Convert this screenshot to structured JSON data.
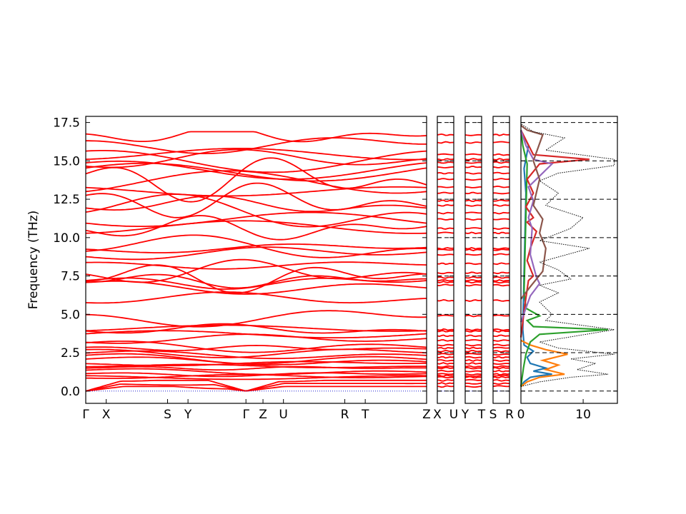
{
  "chart_data": {
    "type": "line",
    "ylabel": "Frequency (THz)",
    "ylim": [
      -0.8,
      17.9
    ],
    "yticks": [
      "0.0",
      "2.5",
      "5.0",
      "7.5",
      "10.0",
      "12.5",
      "15.0",
      "17.5"
    ],
    "ytick_values": [
      0.0,
      2.5,
      5.0,
      7.5,
      10.0,
      12.5,
      15.0,
      17.5
    ],
    "band_color": "#ff0000",
    "zero_line_color": "#0000cc",
    "panels": [
      {
        "xticks": [
          {
            "label": "Γ",
            "x": 0.0
          },
          {
            "label": "X",
            "x": 0.06
          },
          {
            "label": "S",
            "x": 0.24
          },
          {
            "label": "Y",
            "x": 0.3
          },
          {
            "label": "Γ",
            "x": 0.47
          },
          {
            "label": "Z",
            "x": 0.52
          },
          {
            "label": "U",
            "x": 0.58
          },
          {
            "label": "R",
            "x": 0.76
          },
          {
            "label": "T",
            "x": 0.82
          },
          {
            "label": "Z",
            "x": 1.0
          }
        ]
      },
      {
        "xticks": [
          {
            "label": "X",
            "x": 0.0
          },
          {
            "label": "U",
            "x": 1.0
          }
        ]
      },
      {
        "xticks": [
          {
            "label": "Y",
            "x": 0.0
          },
          {
            "label": "T",
            "x": 1.0
          }
        ]
      },
      {
        "xticks": [
          {
            "label": "S",
            "x": 0.0
          },
          {
            "label": "R",
            "x": 1.0
          }
        ]
      }
    ],
    "band_levels": [
      0.3,
      0.5,
      0.7,
      0.9,
      1.0,
      1.1,
      1.3,
      1.5,
      1.6,
      1.8,
      2.0,
      2.2,
      2.4,
      2.6,
      2.8,
      3.0,
      3.3,
      3.6,
      3.9,
      4.0,
      4.9,
      5.9,
      6.9,
      7.1,
      7.2,
      7.4,
      7.7,
      8.3,
      8.9,
      9.2,
      9.3,
      10.3,
      10.6,
      11.2,
      11.6,
      12.1,
      12.4,
      12.9,
      13.3,
      13.8,
      14.2,
      14.6,
      14.9,
      15.1,
      15.4,
      16.2,
      16.7
    ],
    "dos": {
      "xlim": [
        0,
        15.5
      ],
      "xticks": [
        "0",
        "10"
      ],
      "xtick_values": [
        0,
        10
      ],
      "series": [
        {
          "color": "#1f77b4",
          "points": [
            [
              0.0,
              0.3
            ],
            [
              0.5,
              0.6
            ],
            [
              1.5,
              0.9
            ],
            [
              3.0,
              1.0
            ],
            [
              5.0,
              1.1
            ],
            [
              2.0,
              1.3
            ],
            [
              4.0,
              1.5
            ],
            [
              1.5,
              1.8
            ],
            [
              1.0,
              2.2
            ],
            [
              2.0,
              2.6
            ],
            [
              0.5,
              3.0
            ],
            [
              0.3,
              4.0
            ],
            [
              0.8,
              12.9
            ],
            [
              0.5,
              14.5
            ],
            [
              1.2,
              16.0
            ],
            [
              0.0,
              17.0
            ]
          ]
        },
        {
          "color": "#ff7f0e",
          "points": [
            [
              0.0,
              0.3
            ],
            [
              1.0,
              0.6
            ],
            [
              3.0,
              0.9
            ],
            [
              7.0,
              1.1
            ],
            [
              4.0,
              1.4
            ],
            [
              6.0,
              1.7
            ],
            [
              3.5,
              2.0
            ],
            [
              7.5,
              2.4
            ],
            [
              4.0,
              2.7
            ],
            [
              1.5,
              3.0
            ],
            [
              0.0,
              3.3
            ]
          ]
        },
        {
          "color": "#2ca02c",
          "points": [
            [
              0.0,
              0.3
            ],
            [
              0.4,
              1.5
            ],
            [
              0.8,
              2.4
            ],
            [
              1.5,
              3.2
            ],
            [
              3.0,
              3.7
            ],
            [
              14.0,
              4.0
            ],
            [
              2.0,
              4.2
            ],
            [
              1.0,
              4.6
            ],
            [
              3.0,
              4.9
            ],
            [
              0.8,
              5.4
            ],
            [
              0.5,
              6.5
            ],
            [
              1.0,
              14.8
            ],
            [
              0.3,
              16.0
            ],
            [
              0.0,
              17.0
            ]
          ]
        },
        {
          "color": "#d62728",
          "points": [
            [
              0.0,
              3.5
            ],
            [
              0.6,
              5.5
            ],
            [
              1.2,
              7.2
            ],
            [
              2.0,
              7.5
            ],
            [
              1.0,
              8.5
            ],
            [
              1.5,
              9.3
            ],
            [
              2.5,
              10.4
            ],
            [
              1.0,
              11.0
            ],
            [
              2.0,
              11.3
            ],
            [
              0.8,
              12.0
            ],
            [
              2.0,
              12.9
            ],
            [
              1.0,
              13.8
            ],
            [
              3.0,
              14.8
            ],
            [
              11.0,
              15.1
            ],
            [
              2.0,
              15.4
            ],
            [
              1.0,
              16.2
            ],
            [
              0.0,
              17.0
            ]
          ]
        },
        {
          "color": "#9467bd",
          "points": [
            [
              0.0,
              4.5
            ],
            [
              1.5,
              6.2
            ],
            [
              3.0,
              7.0
            ],
            [
              2.5,
              7.4
            ],
            [
              1.5,
              8.9
            ],
            [
              1.8,
              10.6
            ],
            [
              1.2,
              11.3
            ],
            [
              2.0,
              12.4
            ],
            [
              1.2,
              13.3
            ],
            [
              5.0,
              14.8
            ],
            [
              2.0,
              15.1
            ],
            [
              0.8,
              16.0
            ],
            [
              0.0,
              17.0
            ]
          ]
        },
        {
          "color": "#8c564b",
          "points": [
            [
              0.0,
              6.0
            ],
            [
              1.5,
              6.8
            ],
            [
              3.5,
              7.8
            ],
            [
              4.0,
              9.3
            ],
            [
              3.0,
              10.3
            ],
            [
              3.5,
              11.2
            ],
            [
              2.0,
              12.1
            ],
            [
              3.0,
              13.8
            ],
            [
              2.0,
              15.0
            ],
            [
              3.5,
              16.7
            ],
            [
              1.0,
              17.0
            ],
            [
              0.0,
              17.3
            ]
          ]
        },
        {
          "color": "#000000",
          "dotted": true,
          "points": [
            [
              0.0,
              0.3
            ],
            [
              3.0,
              0.6
            ],
            [
              8.0,
              0.9
            ],
            [
              14.0,
              1.1
            ],
            [
              9.0,
              1.4
            ],
            [
              12.0,
              1.8
            ],
            [
              8.0,
              2.1
            ],
            [
              15.0,
              2.4
            ],
            [
              6.0,
              2.8
            ],
            [
              3.0,
              3.2
            ],
            [
              15.0,
              4.0
            ],
            [
              4.0,
              4.6
            ],
            [
              5.0,
              5.0
            ],
            [
              3.0,
              5.8
            ],
            [
              6.0,
              6.4
            ],
            [
              3.0,
              6.9
            ],
            [
              8.0,
              7.3
            ],
            [
              6.0,
              7.9
            ],
            [
              3.0,
              8.4
            ],
            [
              11.0,
              9.3
            ],
            [
              3.0,
              9.8
            ],
            [
              8.0,
              10.6
            ],
            [
              10.0,
              11.3
            ],
            [
              4.0,
              12.1
            ],
            [
              6.0,
              12.9
            ],
            [
              3.0,
              13.7
            ],
            [
              6.0,
              14.2
            ],
            [
              15.0,
              14.7
            ],
            [
              15.0,
              15.1
            ],
            [
              4.0,
              15.7
            ],
            [
              7.0,
              16.5
            ],
            [
              2.0,
              16.9
            ],
            [
              0.0,
              17.4
            ]
          ]
        }
      ]
    }
  }
}
